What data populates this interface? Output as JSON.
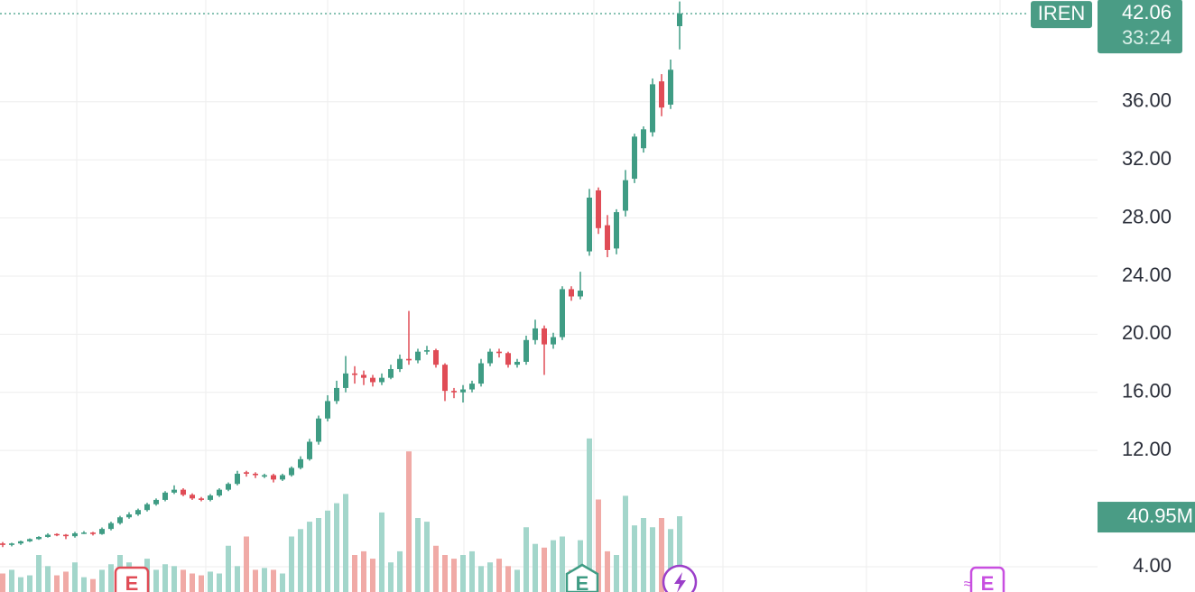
{
  "chart_data": {
    "type": "candlestick",
    "symbol": "IREN",
    "countdown": "33:24",
    "last_volume_label": "40.95M",
    "up_color": "#3f9c84",
    "down_color": "#e04c56",
    "volume_up_color": "#a3d6cb",
    "volume_down_color": "#f0aaa6",
    "grid": true,
    "ylim": [
      2.26,
      43.0
    ],
    "yticks": [
      {
        "value": 4,
        "label": "4.00"
      },
      {
        "value": 12,
        "label": "12.00"
      },
      {
        "value": 16,
        "label": "16.00"
      },
      {
        "value": 20,
        "label": "20.00"
      },
      {
        "value": 24,
        "label": "24.00"
      },
      {
        "value": 28,
        "label": "28.00"
      },
      {
        "value": 32,
        "label": "32.00"
      },
      {
        "value": 36,
        "label": "36.00"
      }
    ],
    "volume_ylim": [
      0,
      320000000
    ],
    "events": [
      {
        "label": "E",
        "color": "#e04c56"
      },
      {
        "label": "E",
        "color": "#3f9c84"
      },
      {
        "label": "E",
        "color": "#c84fe0"
      }
    ],
    "open": [
      5.6,
      5.5,
      5.6,
      5.75,
      5.9,
      6.05,
      6.25,
      6.2,
      6.1,
      6.3,
      6.35,
      6.25,
      6.6,
      7.0,
      7.4,
      7.6,
      7.9,
      8.3,
      8.6,
      9.1,
      9.3,
      8.95,
      8.7,
      8.6,
      8.9,
      9.3,
      9.7,
      10.5,
      10.4,
      10.2,
      10.3,
      10.0,
      10.3,
      10.8,
      11.4,
      12.6,
      14.2,
      15.4,
      16.3,
      17.3,
      17.2,
      17.0,
      16.7,
      17.0,
      17.6,
      18.3,
      18.2,
      18.8,
      18.9,
      17.9,
      16.1,
      16.0,
      16.2,
      16.6,
      18.0,
      18.8,
      18.7,
      17.9,
      18.1,
      19.6,
      20.4,
      19.3,
      19.8,
      23.1,
      22.6,
      25.7,
      29.9,
      27.5,
      25.9,
      28.5,
      30.7,
      32.8,
      33.9,
      37.4,
      35.8,
      41.2
    ],
    "high": [
      5.7,
      5.65,
      5.8,
      5.95,
      6.1,
      6.3,
      6.3,
      6.25,
      6.4,
      6.45,
      6.4,
      6.7,
      7.1,
      7.5,
      7.75,
      8.0,
      8.4,
      8.7,
      9.2,
      9.6,
      9.4,
      9.05,
      8.8,
      9.0,
      9.4,
      9.8,
      10.6,
      10.6,
      10.5,
      10.4,
      10.4,
      10.4,
      10.9,
      11.6,
      12.8,
      14.4,
      15.8,
      16.8,
      18.5,
      17.8,
      17.5,
      17.2,
      17.3,
      17.9,
      18.6,
      21.6,
      19.0,
      19.2,
      19.0,
      18.0,
      16.3,
      16.5,
      16.8,
      18.3,
      19.0,
      19.0,
      18.8,
      18.3,
      19.9,
      21.0,
      20.6,
      20.1,
      23.3,
      23.3,
      24.3,
      30.0,
      30.1,
      28.2,
      28.6,
      31.3,
      33.8,
      34.3,
      37.6,
      37.9,
      38.9,
      42.9
    ],
    "low": [
      5.35,
      5.4,
      5.5,
      5.7,
      5.85,
      6.0,
      6.1,
      5.9,
      6.0,
      6.25,
      6.15,
      6.2,
      6.5,
      6.9,
      7.3,
      7.5,
      7.8,
      8.2,
      8.5,
      9.0,
      8.85,
      8.6,
      8.5,
      8.5,
      8.8,
      9.2,
      9.6,
      10.2,
      10.1,
      10.1,
      9.8,
      9.9,
      10.2,
      10.7,
      11.3,
      12.4,
      14.0,
      15.2,
      16.0,
      16.6,
      16.5,
      16.4,
      16.5,
      16.9,
      17.4,
      17.9,
      18.0,
      18.6,
      17.7,
      15.4,
      15.6,
      15.3,
      16.0,
      16.4,
      17.8,
      18.4,
      17.7,
      17.7,
      17.9,
      19.3,
      17.2,
      19.0,
      19.6,
      22.3,
      22.4,
      25.4,
      26.9,
      25.3,
      25.5,
      28.1,
      30.4,
      32.5,
      33.6,
      35.0,
      35.5,
      39.6
    ],
    "close": [
      5.5,
      5.6,
      5.75,
      5.9,
      6.05,
      6.2,
      6.2,
      6.1,
      6.3,
      6.35,
      6.25,
      6.6,
      7.0,
      7.4,
      7.6,
      7.9,
      8.3,
      8.6,
      9.1,
      9.3,
      8.95,
      8.7,
      8.6,
      8.9,
      9.3,
      9.7,
      10.4,
      10.4,
      10.3,
      10.3,
      10.0,
      10.3,
      10.8,
      11.4,
      12.6,
      14.2,
      15.4,
      16.3,
      17.3,
      17.2,
      17.0,
      16.7,
      17.0,
      17.6,
      18.3,
      18.2,
      18.8,
      18.9,
      17.9,
      16.1,
      16.0,
      16.2,
      16.6,
      18.0,
      18.8,
      18.7,
      17.9,
      18.1,
      19.6,
      20.4,
      19.3,
      19.8,
      23.1,
      22.6,
      23.0,
      29.4,
      27.3,
      25.8,
      28.4,
      30.6,
      33.6,
      34.1,
      37.2,
      35.6,
      38.2,
      42.06
    ],
    "volume": [
      10000000,
      12000000,
      8000000,
      9000000,
      20000000,
      14000000,
      9000000,
      11000000,
      16000000,
      8000000,
      7000000,
      12000000,
      15000000,
      20000000,
      16000000,
      13000000,
      18000000,
      12000000,
      15000000,
      14000000,
      12000000,
      10000000,
      9000000,
      11000000,
      10000000,
      25000000,
      14000000,
      30000000,
      12000000,
      13000000,
      12000000,
      10000000,
      30000000,
      34000000,
      38000000,
      40000000,
      44000000,
      48000000,
      53000000,
      20000000,
      22000000,
      18000000,
      43000000,
      16000000,
      22000000,
      76000000,
      40000000,
      38000000,
      25000000,
      20000000,
      18000000,
      20000000,
      22000000,
      14000000,
      16000000,
      18000000,
      14000000,
      12000000,
      35000000,
      26000000,
      24000000,
      28000000,
      30000000,
      12000000,
      28000000,
      83000000,
      50000000,
      22000000,
      20000000,
      52000000,
      36000000,
      40000000,
      35000000,
      40000000,
      34000000,
      40950000
    ]
  }
}
